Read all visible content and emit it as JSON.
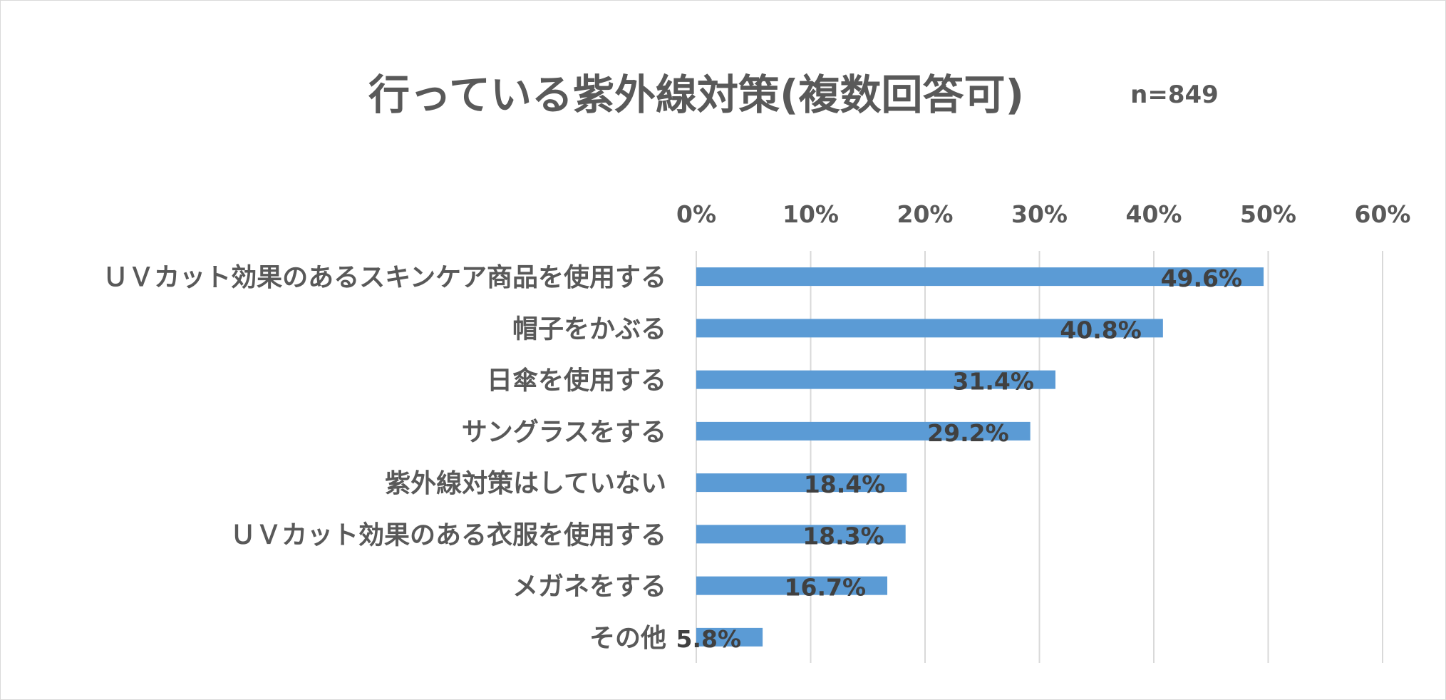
{
  "chart_data": {
    "type": "bar",
    "orientation": "horizontal",
    "title": "行っている紫外線対策(複数回答可)",
    "subtitle": "n=849",
    "categories": [
      "ＵＶカット効果のあるスキンケア商品を使用する",
      "帽子をかぶる",
      "日傘を使用する",
      "サングラスをする",
      "紫外線対策はしていない",
      "ＵＶカット効果のある衣服を使用する",
      "メガネをする",
      "その他"
    ],
    "values": [
      49.6,
      40.8,
      31.4,
      29.2,
      18.4,
      18.3,
      16.7,
      5.8
    ],
    "data_labels": [
      "49.6%",
      "40.8%",
      "31.4%",
      "29.2%",
      "18.4%",
      "18.3%",
      "16.7%",
      "5.8%"
    ],
    "xlim": [
      0,
      60
    ],
    "ticks": [
      0,
      10,
      20,
      30,
      40,
      50,
      60
    ],
    "tick_labels": [
      "0%",
      "10%",
      "20%",
      "30%",
      "40%",
      "50%",
      "60%"
    ],
    "axis_position": "top",
    "grid": true,
    "legend": "none",
    "bar_color": "#5b9bd5",
    "grid_color": "#d9d9d9",
    "text_color": "#595959",
    "label_color": "#404040"
  }
}
